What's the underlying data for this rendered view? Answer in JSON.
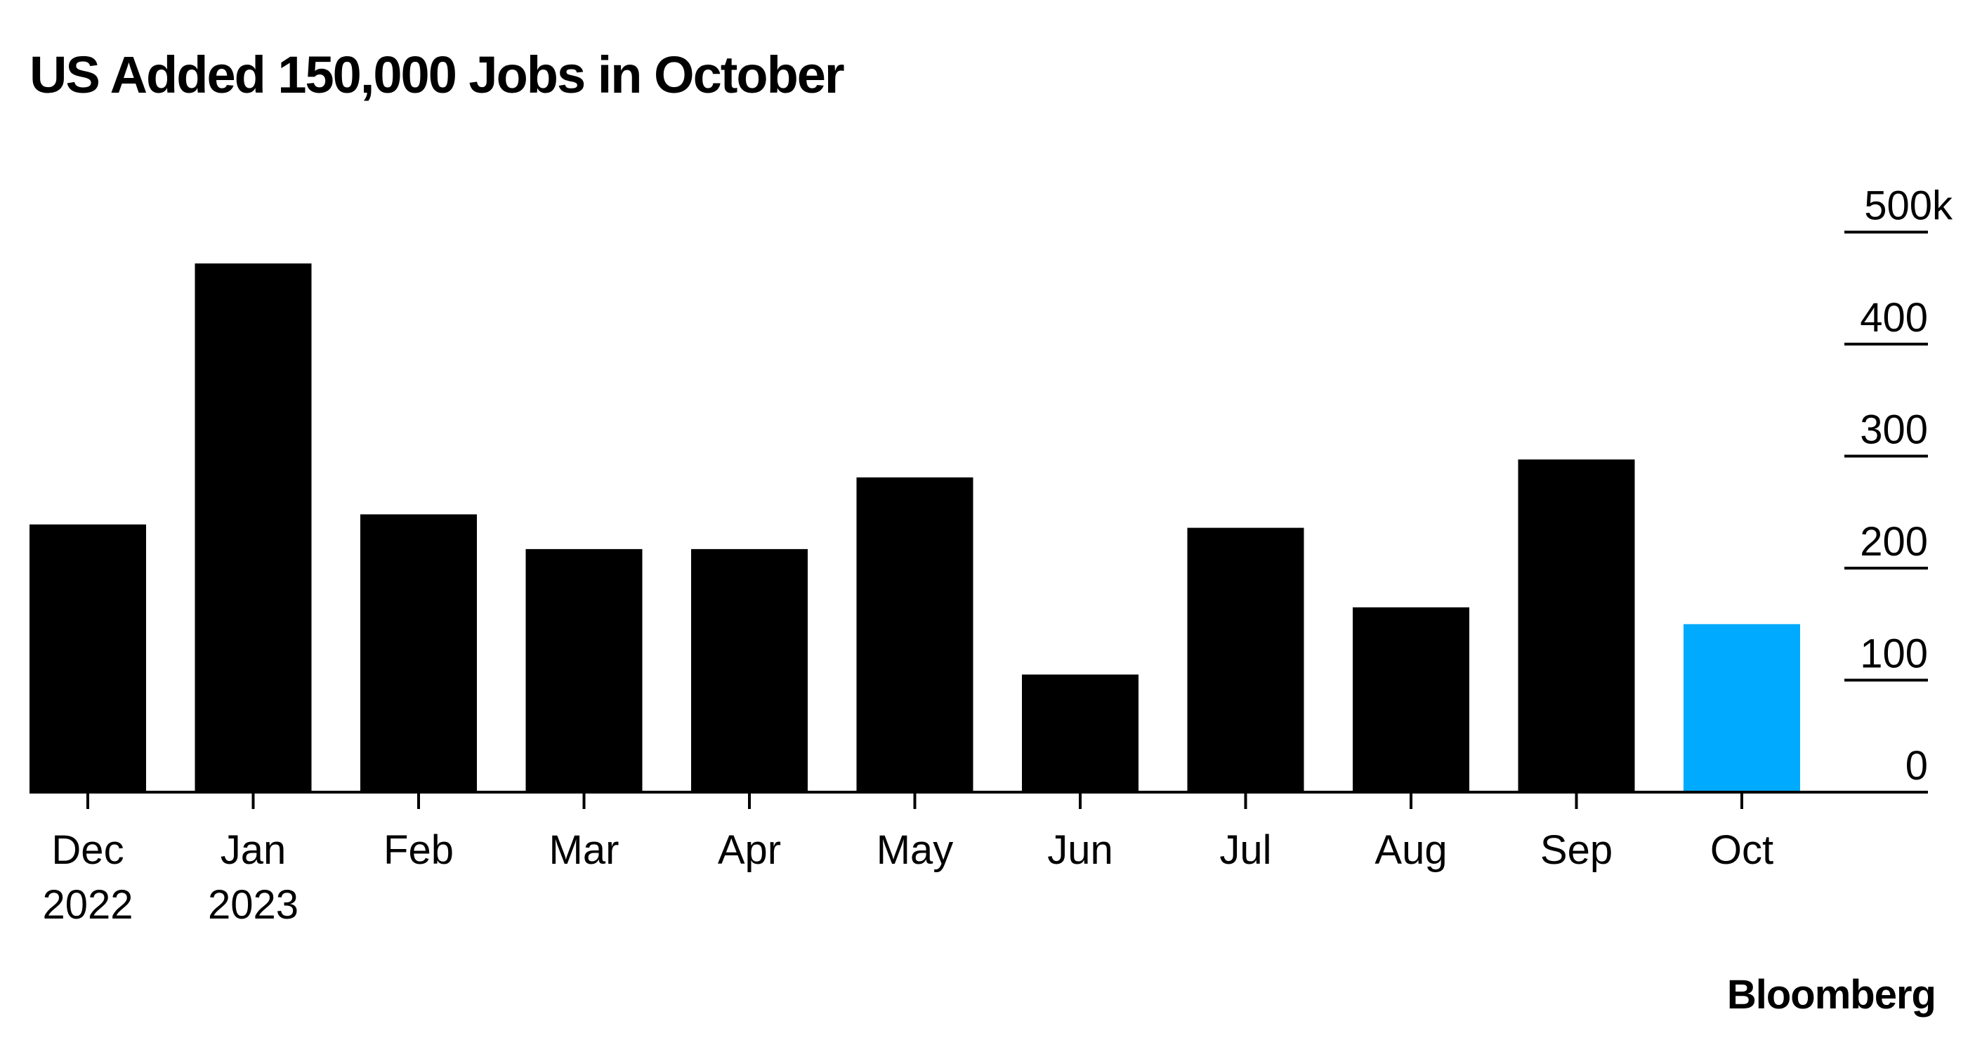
{
  "chart_data": {
    "type": "bar",
    "title": "US Added 150,000 Jobs in October",
    "categories": [
      [
        "Dec",
        "2022"
      ],
      [
        "Jan",
        "2023"
      ],
      [
        "Feb"
      ],
      [
        "Mar"
      ],
      [
        "Apr"
      ],
      [
        "May"
      ],
      [
        "Jun"
      ],
      [
        "Jul"
      ],
      [
        "Aug"
      ],
      [
        "Sep"
      ],
      [
        "Oct"
      ]
    ],
    "values": [
      239,
      472,
      248,
      217,
      217,
      281,
      105,
      236,
      165,
      297,
      150
    ],
    "highlight_index": 10,
    "colors": {
      "bar": "#000000",
      "highlight": "#00aaff",
      "axis": "#000000"
    },
    "ylim": [
      0,
      500
    ],
    "yticks": [
      {
        "value": 0,
        "label": "0"
      },
      {
        "value": 100,
        "label": "100"
      },
      {
        "value": 200,
        "label": "200"
      },
      {
        "value": 300,
        "label": "300"
      },
      {
        "value": 400,
        "label": "400"
      },
      {
        "value": 500,
        "label": "500k"
      }
    ],
    "y_axis_side": "right",
    "grid": false,
    "legend": "none"
  },
  "source": "Bloomberg"
}
